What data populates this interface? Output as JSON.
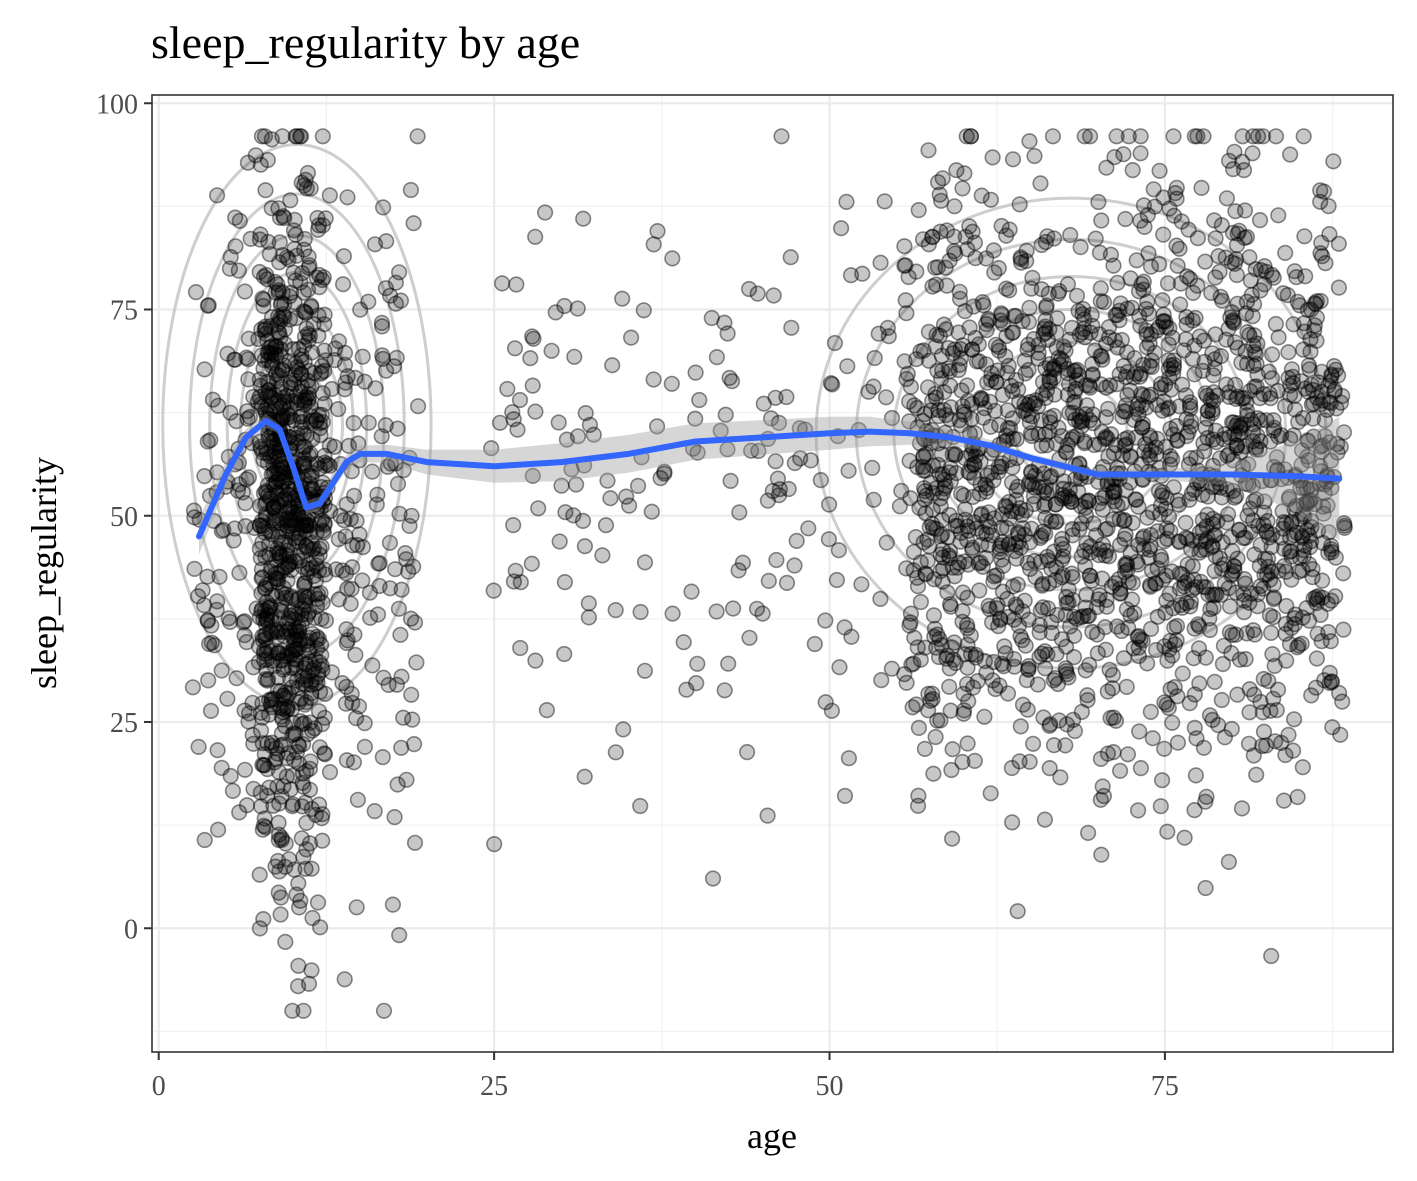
{
  "chart_data": {
    "type": "scatter",
    "title": "sleep_regularity by age",
    "xlabel": "age",
    "ylabel": "sleep_regularity",
    "xlim": [
      -0.5,
      92
    ],
    "ylim": [
      -15,
      101
    ],
    "x_ticks": [
      0,
      25,
      50,
      75
    ],
    "y_ticks": [
      0,
      25,
      50,
      75,
      100
    ],
    "x_tick_labels": [
      "0",
      "25",
      "50",
      "75"
    ],
    "y_tick_labels": [
      "0",
      "25",
      "50",
      "75",
      "100"
    ],
    "grid": true,
    "legend": "none",
    "colors": {
      "points": "#000000",
      "smooth_line": "#3366FF",
      "confidence_band": "#999999",
      "contours": "#bebebe"
    },
    "groups": [
      {
        "age_range": [
          3,
          19
        ],
        "y_mean": 48,
        "y_sd": 21,
        "n_points": 1100,
        "dense_age_range": [
          7.5,
          12
        ]
      },
      {
        "age_range": [
          25,
          57
        ],
        "y_mean": 55,
        "y_sd": 16,
        "n_points": 210
      },
      {
        "age_range": [
          56,
          88
        ],
        "y_mean": 55,
        "y_sd": 18,
        "n_points": 1800
      }
    ],
    "smooth_series": {
      "name": "",
      "x": [
        3,
        5,
        6.5,
        8,
        9,
        10,
        11,
        12,
        13,
        14,
        15,
        17,
        20,
        25,
        30,
        35,
        40,
        45,
        50,
        53,
        56,
        59,
        62,
        65,
        68,
        70,
        75,
        80,
        85,
        88
      ],
      "y": [
        47.5,
        55,
        59.5,
        61.5,
        60.5,
        56,
        51,
        51.5,
        54,
        56.5,
        57.5,
        57.5,
        56.5,
        56,
        56.5,
        57.5,
        59,
        59.5,
        60,
        60.2,
        60,
        59.5,
        58.5,
        57,
        55.8,
        55,
        55,
        55,
        54.8,
        54.5
      ],
      "band_half_width": [
        2.2,
        1.5,
        1.0,
        0.8,
        0.6,
        0.6,
        0.8,
        0.8,
        0.8,
        0.9,
        1.0,
        1.1,
        1.5,
        2.0,
        2.3,
        2.3,
        2.2,
        2.1,
        2.0,
        1.8,
        1.4,
        1.0,
        0.7,
        0.5,
        0.5,
        0.5,
        0.7,
        1.3,
        4.5,
        7.5
      ]
    },
    "density_contours": [
      {
        "center": [
          10.3,
          61
        ],
        "levels_radii": [
          [
            1,
            1.2
          ],
          [
            1.8,
            3.5
          ],
          [
            2.6,
            6.5
          ],
          [
            3.4,
            10
          ],
          [
            4.2,
            14
          ],
          [
            5.2,
            18.5
          ],
          [
            6.5,
            23
          ],
          [
            8,
            28
          ],
          [
            10,
            34
          ]
        ]
      },
      {
        "center": [
          68,
          60
        ],
        "levels_radii": [
          [
            4.2,
            6
          ],
          [
            7.5,
            11
          ],
          [
            10.5,
            15
          ],
          [
            13.2,
            19
          ],
          [
            16,
            23.5
          ],
          [
            19,
            28.5
          ]
        ]
      }
    ]
  }
}
